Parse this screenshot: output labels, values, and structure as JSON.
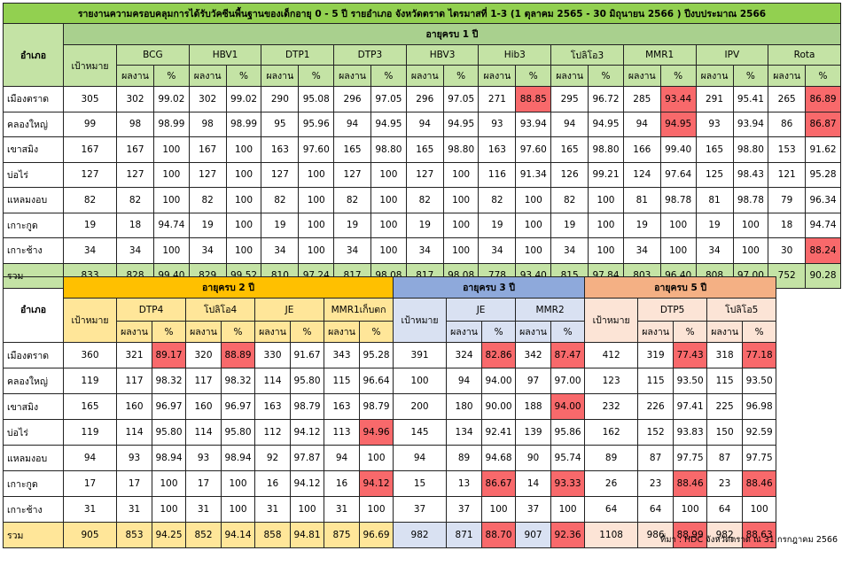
{
  "title": "รายงานความครอบคลุมการได้รับวัคซีนพื้นฐานของเด็กอายุ 0 - 5 ปี รายอำเภอ จังหวัดตราด ไตรมาสที่ 1-3 (1 ตุลาคม 2565 - 30 มิถุนายน 2566 ) ปีงบประมาณ 2566",
  "labels": {
    "district": "อำเภอ",
    "target": "เป้าหมาย",
    "result": "ผลงาน",
    "percent": "%",
    "total": "รวม"
  },
  "table1": {
    "age_group": "อายุครบ 1 ปี",
    "vaccines": [
      "BCG",
      "HBV1",
      "DTP1",
      "DTP3",
      "HBV3",
      "Hib3",
      "โปลิโอ3",
      "MMR1",
      "IPV",
      "Rota"
    ],
    "rows": [
      {
        "district": "เมืองตราด",
        "target": "305",
        "cells": [
          [
            "302",
            "99.02"
          ],
          [
            "302",
            "99.02"
          ],
          [
            "290",
            "95.08"
          ],
          [
            "296",
            "97.05"
          ],
          [
            "296",
            "97.05"
          ],
          [
            "271",
            "88.85"
          ],
          [
            "295",
            "96.72"
          ],
          [
            "285",
            "93.44"
          ],
          [
            "291",
            "95.41"
          ],
          [
            "265",
            "86.89"
          ]
        ]
      },
      {
        "district": "คลองใหญ่",
        "target": "99",
        "cells": [
          [
            "98",
            "98.99"
          ],
          [
            "98",
            "98.99"
          ],
          [
            "95",
            "95.96"
          ],
          [
            "94",
            "94.95"
          ],
          [
            "94",
            "94.95"
          ],
          [
            "93",
            "93.94"
          ],
          [
            "94",
            "94.95"
          ],
          [
            "94",
            "94.95"
          ],
          [
            "93",
            "93.94"
          ],
          [
            "86",
            "86.87"
          ]
        ]
      },
      {
        "district": "เขาสมิง",
        "target": "167",
        "cells": [
          [
            "167",
            "100"
          ],
          [
            "167",
            "100"
          ],
          [
            "163",
            "97.60"
          ],
          [
            "165",
            "98.80"
          ],
          [
            "165",
            "98.80"
          ],
          [
            "163",
            "97.60"
          ],
          [
            "165",
            "98.80"
          ],
          [
            "166",
            "99.40"
          ],
          [
            "165",
            "98.80"
          ],
          [
            "153",
            "91.62"
          ]
        ]
      },
      {
        "district": "บ่อไร่",
        "target": "127",
        "cells": [
          [
            "127",
            "100"
          ],
          [
            "127",
            "100"
          ],
          [
            "127",
            "100"
          ],
          [
            "127",
            "100"
          ],
          [
            "127",
            "100"
          ],
          [
            "116",
            "91.34"
          ],
          [
            "126",
            "99.21"
          ],
          [
            "124",
            "97.64"
          ],
          [
            "125",
            "98.43"
          ],
          [
            "121",
            "95.28"
          ]
        ]
      },
      {
        "district": "แหลมงอบ",
        "target": "82",
        "cells": [
          [
            "82",
            "100"
          ],
          [
            "82",
            "100"
          ],
          [
            "82",
            "100"
          ],
          [
            "82",
            "100"
          ],
          [
            "82",
            "100"
          ],
          [
            "82",
            "100"
          ],
          [
            "82",
            "100"
          ],
          [
            "81",
            "98.78"
          ],
          [
            "81",
            "98.78"
          ],
          [
            "79",
            "96.34"
          ]
        ]
      },
      {
        "district": "เกาะกูด",
        "target": "19",
        "cells": [
          [
            "18",
            "94.74"
          ],
          [
            "19",
            "100"
          ],
          [
            "19",
            "100"
          ],
          [
            "19",
            "100"
          ],
          [
            "19",
            "100"
          ],
          [
            "19",
            "100"
          ],
          [
            "19",
            "100"
          ],
          [
            "19",
            "100"
          ],
          [
            "19",
            "100"
          ],
          [
            "18",
            "94.74"
          ]
        ]
      },
      {
        "district": "เกาะช้าง",
        "target": "34",
        "cells": [
          [
            "34",
            "100"
          ],
          [
            "34",
            "100"
          ],
          [
            "34",
            "100"
          ],
          [
            "34",
            "100"
          ],
          [
            "34",
            "100"
          ],
          [
            "34",
            "100"
          ],
          [
            "34",
            "100"
          ],
          [
            "34",
            "100"
          ],
          [
            "34",
            "100"
          ],
          [
            "30",
            "88.24"
          ]
        ]
      }
    ],
    "total": {
      "target": "833",
      "cells": [
        [
          "828",
          "99.40"
        ],
        [
          "829",
          "99.52"
        ],
        [
          "810",
          "97.24"
        ],
        [
          "817",
          "98.08"
        ],
        [
          "817",
          "98.08"
        ],
        [
          "778",
          "93.40"
        ],
        [
          "815",
          "97.84"
        ],
        [
          "803",
          "96.40"
        ],
        [
          "808",
          "97.00"
        ],
        [
          "752",
          "90.28"
        ]
      ]
    },
    "highlight": [
      [
        0,
        5
      ],
      [
        0,
        7
      ],
      [
        0,
        9
      ],
      [
        1,
        7
      ],
      [
        1,
        9
      ],
      [
        6,
        9
      ]
    ]
  },
  "table2": {
    "groups": [
      {
        "age": "อายุครบ 2 ปี",
        "vaccines": [
          "DTP4",
          "โปลิโอ4",
          "JE",
          "MMR1เก็บตก"
        ]
      },
      {
        "age": "อายุครบ 3 ปี",
        "vaccines": [
          "JE",
          "MMR2"
        ]
      },
      {
        "age": "อายุครบ 5 ปี",
        "vaccines": [
          "DTP5",
          "โปลิโอ5"
        ]
      }
    ],
    "rows": [
      {
        "district": "เมืองตราด",
        "g": [
          [
            "360",
            [
              [
                "321",
                "89.17"
              ],
              [
                "320",
                "88.89"
              ],
              [
                "330",
                "91.67"
              ],
              [
                "343",
                "95.28"
              ]
            ]
          ],
          [
            "391",
            [
              [
                "324",
                "82.86"
              ],
              [
                "342",
                "87.47"
              ]
            ]
          ],
          [
            "412",
            [
              [
                "319",
                "77.43"
              ],
              [
                "318",
                "77.18"
              ]
            ]
          ]
        ]
      },
      {
        "district": "คลองใหญ่",
        "g": [
          [
            "119",
            [
              [
                "117",
                "98.32"
              ],
              [
                "117",
                "98.32"
              ],
              [
                "114",
                "95.80"
              ],
              [
                "115",
                "96.64"
              ]
            ]
          ],
          [
            "100",
            [
              [
                "94",
                "94.00"
              ],
              [
                "97",
                "97.00"
              ]
            ]
          ],
          [
            "123",
            [
              [
                "115",
                "93.50"
              ],
              [
                "115",
                "93.50"
              ]
            ]
          ]
        ]
      },
      {
        "district": "เขาสมิง",
        "g": [
          [
            "165",
            [
              [
                "160",
                "96.97"
              ],
              [
                "160",
                "96.97"
              ],
              [
                "163",
                "98.79"
              ],
              [
                "163",
                "98.79"
              ]
            ]
          ],
          [
            "200",
            [
              [
                "180",
                "90.00"
              ],
              [
                "188",
                "94.00"
              ]
            ]
          ],
          [
            "232",
            [
              [
                "226",
                "97.41"
              ],
              [
                "225",
                "96.98"
              ]
            ]
          ]
        ]
      },
      {
        "district": "บ่อไร่",
        "g": [
          [
            "119",
            [
              [
                "114",
                "95.80"
              ],
              [
                "114",
                "95.80"
              ],
              [
                "112",
                "94.12"
              ],
              [
                "113",
                "94.96"
              ]
            ]
          ],
          [
            "145",
            [
              [
                "134",
                "92.41"
              ],
              [
                "139",
                "95.86"
              ]
            ]
          ],
          [
            "162",
            [
              [
                "152",
                "93.83"
              ],
              [
                "150",
                "92.59"
              ]
            ]
          ]
        ]
      },
      {
        "district": "แหลมงอบ",
        "g": [
          [
            "94",
            [
              [
                "93",
                "98.94"
              ],
              [
                "93",
                "98.94"
              ],
              [
                "92",
                "97.87"
              ],
              [
                "94",
                "100"
              ]
            ]
          ],
          [
            "94",
            [
              [
                "89",
                "94.68"
              ],
              [
                "90",
                "95.74"
              ]
            ]
          ],
          [
            "89",
            [
              [
                "87",
                "97.75"
              ],
              [
                "87",
                "97.75"
              ]
            ]
          ]
        ]
      },
      {
        "district": "เกาะกูด",
        "g": [
          [
            "17",
            [
              [
                "17",
                "100"
              ],
              [
                "17",
                "100"
              ],
              [
                "16",
                "94.12"
              ],
              [
                "16",
                "94.12"
              ]
            ]
          ],
          [
            "15",
            [
              [
                "13",
                "86.67"
              ],
              [
                "14",
                "93.33"
              ]
            ]
          ],
          [
            "26",
            [
              [
                "23",
                "88.46"
              ],
              [
                "23",
                "88.46"
              ]
            ]
          ]
        ]
      },
      {
        "district": "เกาะช้าง",
        "g": [
          [
            "31",
            [
              [
                "31",
                "100"
              ],
              [
                "31",
                "100"
              ],
              [
                "31",
                "100"
              ],
              [
                "31",
                "100"
              ]
            ]
          ],
          [
            "37",
            [
              [
                "37",
                "100"
              ],
              [
                "37",
                "100"
              ]
            ]
          ],
          [
            "64",
            [
              [
                "64",
                "100"
              ],
              [
                "64",
                "100"
              ]
            ]
          ]
        ]
      }
    ],
    "total": [
      [
        "905",
        [
          [
            "853",
            "94.25"
          ],
          [
            "852",
            "94.14"
          ],
          [
            "858",
            "94.81"
          ],
          [
            "875",
            "96.69"
          ]
        ]
      ],
      [
        "982",
        [
          [
            "871",
            "88.70"
          ],
          [
            "907",
            "92.36"
          ]
        ]
      ],
      [
        "1108",
        [
          [
            "986",
            "88.99"
          ],
          [
            "982",
            "88.63"
          ]
        ]
      ]
    ],
    "highlight": [
      [
        0,
        0,
        0
      ],
      [
        0,
        0,
        1
      ],
      [
        0,
        1,
        0
      ],
      [
        0,
        1,
        1
      ],
      [
        0,
        2,
        0
      ],
      [
        0,
        2,
        1
      ],
      [
        2,
        1,
        1
      ],
      [
        3,
        0,
        3
      ],
      [
        5,
        0,
        3
      ],
      [
        5,
        1,
        0
      ],
      [
        5,
        1,
        1
      ],
      [
        5,
        2,
        0
      ],
      [
        5,
        2,
        1
      ],
      [
        7,
        1,
        0
      ],
      [
        7,
        1,
        1
      ],
      [
        7,
        2,
        0
      ],
      [
        7,
        2,
        1
      ]
    ]
  },
  "source": "ที่มา : HDC จังหวัดตราด ณ 31 กรกฎาคม 2566"
}
